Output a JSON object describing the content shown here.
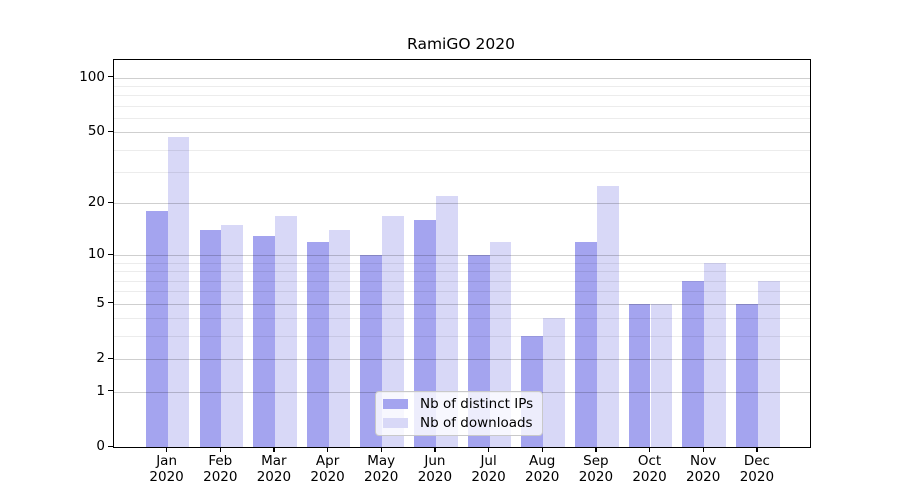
{
  "title": "RamiGO 2020",
  "year": "2020",
  "legend": {
    "items": [
      {
        "label": "Nb of distinct IPs",
        "color": "#a4a4ef"
      },
      {
        "label": "Nb of downloads",
        "color": "#d8d8f7"
      }
    ]
  },
  "axes": {
    "y_tick_labels": [
      "100",
      "50",
      "20",
      "10",
      "5",
      "2",
      "1",
      "0"
    ],
    "y_tick_values": [
      100,
      50,
      20,
      10,
      5,
      2,
      1,
      0
    ],
    "y_minor_values": [
      3,
      4,
      6,
      7,
      8,
      9,
      30,
      40,
      60,
      70,
      80,
      90
    ]
  },
  "chart_data": {
    "type": "bar",
    "title": "RamiGO 2020",
    "xlabel": "",
    "ylabel": "",
    "scale": "log1p",
    "ylim": [
      0,
      125
    ],
    "grid": true,
    "legend_position": "lower center",
    "categories": [
      "Jan",
      "Feb",
      "Mar",
      "Apr",
      "May",
      "Jun",
      "Jul",
      "Aug",
      "Sep",
      "Oct",
      "Nov",
      "Dec"
    ],
    "category_year": "2020",
    "y_ticks": [
      0,
      1,
      2,
      5,
      10,
      20,
      50,
      100
    ],
    "series": [
      {
        "name": "Nb of distinct IPs",
        "color": "#a4a4ef",
        "values": [
          18,
          14,
          13,
          12,
          10,
          16,
          10,
          3,
          12,
          5,
          7,
          5
        ]
      },
      {
        "name": "Nb of downloads",
        "color": "#d8d8f7",
        "values": [
          47,
          15,
          17,
          14,
          17,
          22,
          12,
          4,
          25,
          5,
          9,
          7
        ]
      }
    ]
  }
}
